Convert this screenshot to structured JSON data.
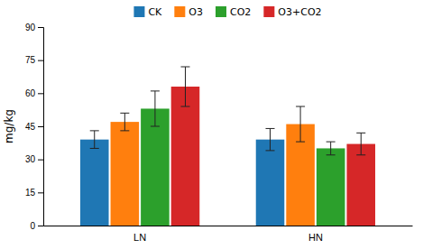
{
  "chart_data": {
    "type": "bar",
    "categories": [
      "LN",
      "HN"
    ],
    "series": [
      {
        "name": "CK",
        "values": [
          39,
          39
        ],
        "errors": [
          4,
          5
        ]
      },
      {
        "name": "O3",
        "values": [
          47,
          46
        ],
        "errors": [
          4,
          8
        ]
      },
      {
        "name": "CO2",
        "values": [
          53,
          35
        ],
        "errors": [
          8,
          3
        ]
      },
      {
        "name": "O3+CO2",
        "values": [
          63,
          37
        ],
        "errors": [
          9,
          5
        ]
      }
    ],
    "ylabel": "mg/kg",
    "ylim": [
      0,
      90
    ],
    "yticks": [
      0,
      15,
      30,
      45,
      60,
      75,
      90
    ],
    "grid": false,
    "legend": "top"
  }
}
